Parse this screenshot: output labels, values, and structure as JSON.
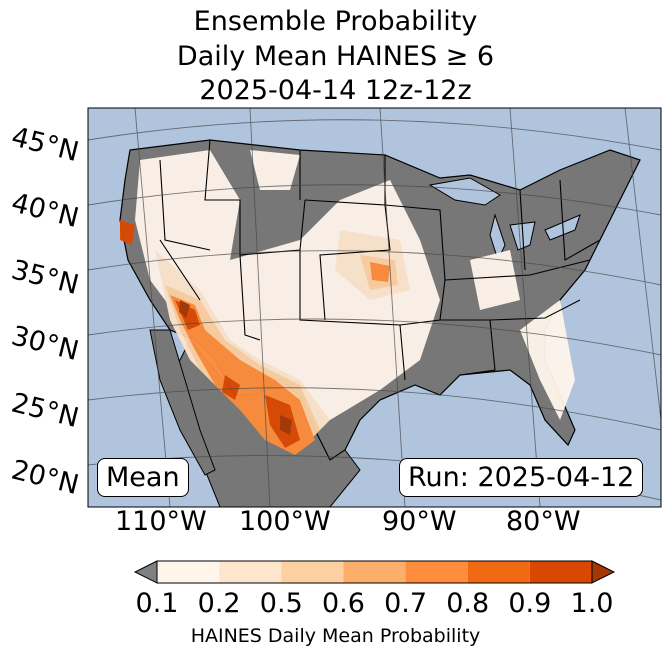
{
  "title": {
    "line1": "Ensemble Probability",
    "line2": "Daily Mean HAINES ≥ 6",
    "line3": "2025-04-14 12z-12z"
  },
  "map": {
    "projection": "conic",
    "region": "Contiguous United States",
    "lat_labels": [
      "45°N",
      "40°N",
      "35°N",
      "30°N",
      "25°N",
      "20°N"
    ],
    "lon_labels": [
      "110°W",
      "100°W",
      "90°W",
      "80°W"
    ],
    "colors": {
      "ocean": "#b0c4de",
      "land_no_data": "#808080",
      "low": "#fff5eb"
    },
    "max_probability_area": "Southwest / Northern Mexico"
  },
  "annotations": {
    "mean_label": "Mean",
    "run_label": "Run: 2025-04-12"
  },
  "colorbar": {
    "label": "HAINES Daily Mean Probability",
    "ticks": [
      "0.1",
      "0.2",
      "0.5",
      "0.6",
      "0.7",
      "0.8",
      "0.9",
      "1.0"
    ],
    "colors": [
      "#fff5eb",
      "#fee6ce",
      "#fdd0a2",
      "#fdae6b",
      "#fd8d3c",
      "#f16913",
      "#d94801"
    ],
    "under_color": "#808080",
    "over_color": "#a63603"
  }
}
